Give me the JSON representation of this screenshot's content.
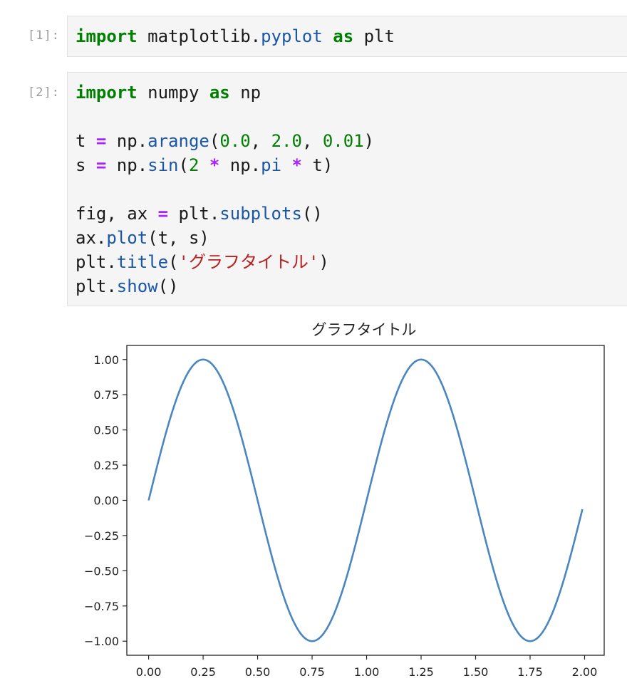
{
  "cells": [
    {
      "prompt": "[1]:",
      "lines": [
        [
          {
            "t": "import",
            "c": "kw"
          },
          {
            "t": " matplotlib.",
            "c": ""
          },
          {
            "t": "pyplot",
            "c": "fn"
          },
          {
            "t": " ",
            "c": ""
          },
          {
            "t": "as",
            "c": "kw"
          },
          {
            "t": " plt",
            "c": ""
          }
        ]
      ]
    },
    {
      "prompt": "[2]:",
      "lines": [
        [
          {
            "t": "import",
            "c": "kw"
          },
          {
            "t": " numpy ",
            "c": ""
          },
          {
            "t": "as",
            "c": "kw"
          },
          {
            "t": " np",
            "c": ""
          }
        ],
        [],
        [
          {
            "t": "t ",
            "c": ""
          },
          {
            "t": "=",
            "c": "op"
          },
          {
            "t": " np.",
            "c": ""
          },
          {
            "t": "arange",
            "c": "fn"
          },
          {
            "t": "(",
            "c": ""
          },
          {
            "t": "0.0",
            "c": "num"
          },
          {
            "t": ", ",
            "c": ""
          },
          {
            "t": "2.0",
            "c": "num"
          },
          {
            "t": ", ",
            "c": ""
          },
          {
            "t": "0.01",
            "c": "num"
          },
          {
            "t": ")",
            "c": ""
          }
        ],
        [
          {
            "t": "s ",
            "c": ""
          },
          {
            "t": "=",
            "c": "op"
          },
          {
            "t": " np.",
            "c": ""
          },
          {
            "t": "sin",
            "c": "fn"
          },
          {
            "t": "(",
            "c": ""
          },
          {
            "t": "2",
            "c": "num"
          },
          {
            "t": " ",
            "c": ""
          },
          {
            "t": "*",
            "c": "op"
          },
          {
            "t": " np.",
            "c": ""
          },
          {
            "t": "pi",
            "c": "fn"
          },
          {
            "t": " ",
            "c": ""
          },
          {
            "t": "*",
            "c": "op"
          },
          {
            "t": " t)",
            "c": ""
          }
        ],
        [],
        [
          {
            "t": "fig, ax ",
            "c": ""
          },
          {
            "t": "=",
            "c": "op"
          },
          {
            "t": " plt.",
            "c": ""
          },
          {
            "t": "subplots",
            "c": "fn"
          },
          {
            "t": "()",
            "c": ""
          }
        ],
        [
          {
            "t": "ax.",
            "c": ""
          },
          {
            "t": "plot",
            "c": "fn"
          },
          {
            "t": "(t, s)",
            "c": ""
          }
        ],
        [
          {
            "t": "plt.",
            "c": ""
          },
          {
            "t": "title",
            "c": "fn"
          },
          {
            "t": "(",
            "c": ""
          },
          {
            "t": "'グラフタイトル'",
            "c": "str"
          },
          {
            "t": ")",
            "c": ""
          }
        ],
        [
          {
            "t": "plt.",
            "c": ""
          },
          {
            "t": "show",
            "c": "fn"
          },
          {
            "t": "()",
            "c": ""
          }
        ]
      ]
    }
  ],
  "syntax_colors": {
    "keyword": "#008000",
    "operator": "#aa22ff",
    "function": "#1a56a8",
    "number": "#008000",
    "string": "#ba2121"
  },
  "chart_data": {
    "type": "line",
    "title": "グラフタイトル",
    "xlabel": "",
    "ylabel": "",
    "function": "sin(2*pi*t)",
    "x_start": 0.0,
    "x_stop": 2.0,
    "x_step": 0.01,
    "xlim": [
      -0.1,
      2.09
    ],
    "ylim": [
      -1.1,
      1.1
    ],
    "xticks": [
      "0.00",
      "0.25",
      "0.50",
      "0.75",
      "1.00",
      "1.25",
      "1.50",
      "1.75",
      "2.00"
    ],
    "yticks": [
      "1.00",
      "0.75",
      "0.50",
      "0.25",
      "0.00",
      "−0.25",
      "−0.50",
      "−0.75",
      "−1.00"
    ],
    "grid": false,
    "line_color": "#4a86c0",
    "series": [
      {
        "x": [
          0.0,
          0.05,
          0.1,
          0.15,
          0.2,
          0.25,
          0.3,
          0.35,
          0.4,
          0.45,
          0.5,
          0.55,
          0.6,
          0.65,
          0.7,
          0.75,
          0.8,
          0.85,
          0.9,
          0.95,
          1.0,
          1.05,
          1.1,
          1.15,
          1.2,
          1.25,
          1.3,
          1.35,
          1.4,
          1.45,
          1.5,
          1.55,
          1.6,
          1.65,
          1.7,
          1.75,
          1.8,
          1.85,
          1.9,
          1.95,
          1.99
        ],
        "y": [
          0.0,
          0.309,
          0.588,
          0.809,
          0.951,
          1.0,
          0.951,
          0.809,
          0.588,
          0.309,
          0.0,
          -0.309,
          -0.588,
          -0.809,
          -0.951,
          -1.0,
          -0.951,
          -0.809,
          -0.588,
          -0.309,
          0.0,
          0.309,
          0.588,
          0.809,
          0.951,
          1.0,
          0.951,
          0.809,
          0.588,
          0.309,
          0.0,
          -0.309,
          -0.588,
          -0.809,
          -0.951,
          -1.0,
          -0.951,
          -0.809,
          -0.588,
          -0.309,
          -0.063
        ]
      }
    ]
  }
}
